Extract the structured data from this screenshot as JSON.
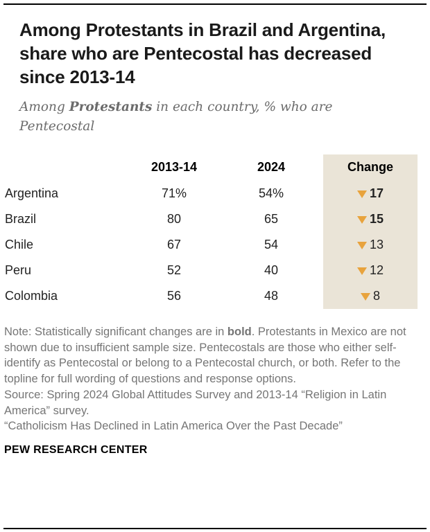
{
  "header": {
    "title": "Among Protestants in Brazil and Argentina, share who are Pentecostal has decreased since 2013-14",
    "subtitle": {
      "prefix": "Among ",
      "bold": "Protestants",
      "suffix": " in each country, % who are Pentecostal"
    }
  },
  "chart_data": {
    "type": "table",
    "columns": [
      "2013-14",
      "2024",
      "Change"
    ],
    "rows": [
      {
        "country": "Argentina",
        "v2013": "71%",
        "v2024": "54%",
        "change": "17",
        "direction": "down",
        "significant": true
      },
      {
        "country": "Brazil",
        "v2013": "80",
        "v2024": "65",
        "change": "15",
        "direction": "down",
        "significant": true
      },
      {
        "country": "Chile",
        "v2013": "67",
        "v2024": "54",
        "change": "13",
        "direction": "down",
        "significant": false
      },
      {
        "country": "Peru",
        "v2013": "52",
        "v2024": "40",
        "change": "12",
        "direction": "down",
        "significant": false
      },
      {
        "country": "Colombia",
        "v2013": "56",
        "v2024": "48",
        "change": "8",
        "direction": "down",
        "significant": false
      }
    ],
    "colors": {
      "change_column_background": "#EAE4D7",
      "triangle": "#E8A33D"
    },
    "legend_position": "none",
    "grid": false
  },
  "notes": {
    "note_prefix": "Note: Statistically significant changes are in ",
    "note_bold": "bold",
    "note_suffix": ". Protestants in Mexico are not shown due to insufficient sample size. Pentecostals are those who either self-identify as Pentecostal or belong to a Pentecostal church, or both. Refer to the topline for full wording of questions and response options.",
    "source": "Source: Spring 2024 Global Attitudes Survey and 2013-14 “Religion in Latin America” survey.",
    "report": "“Catholicism Has Declined in Latin America Over the Past Decade”",
    "brand": "PEW RESEARCH CENTER"
  }
}
